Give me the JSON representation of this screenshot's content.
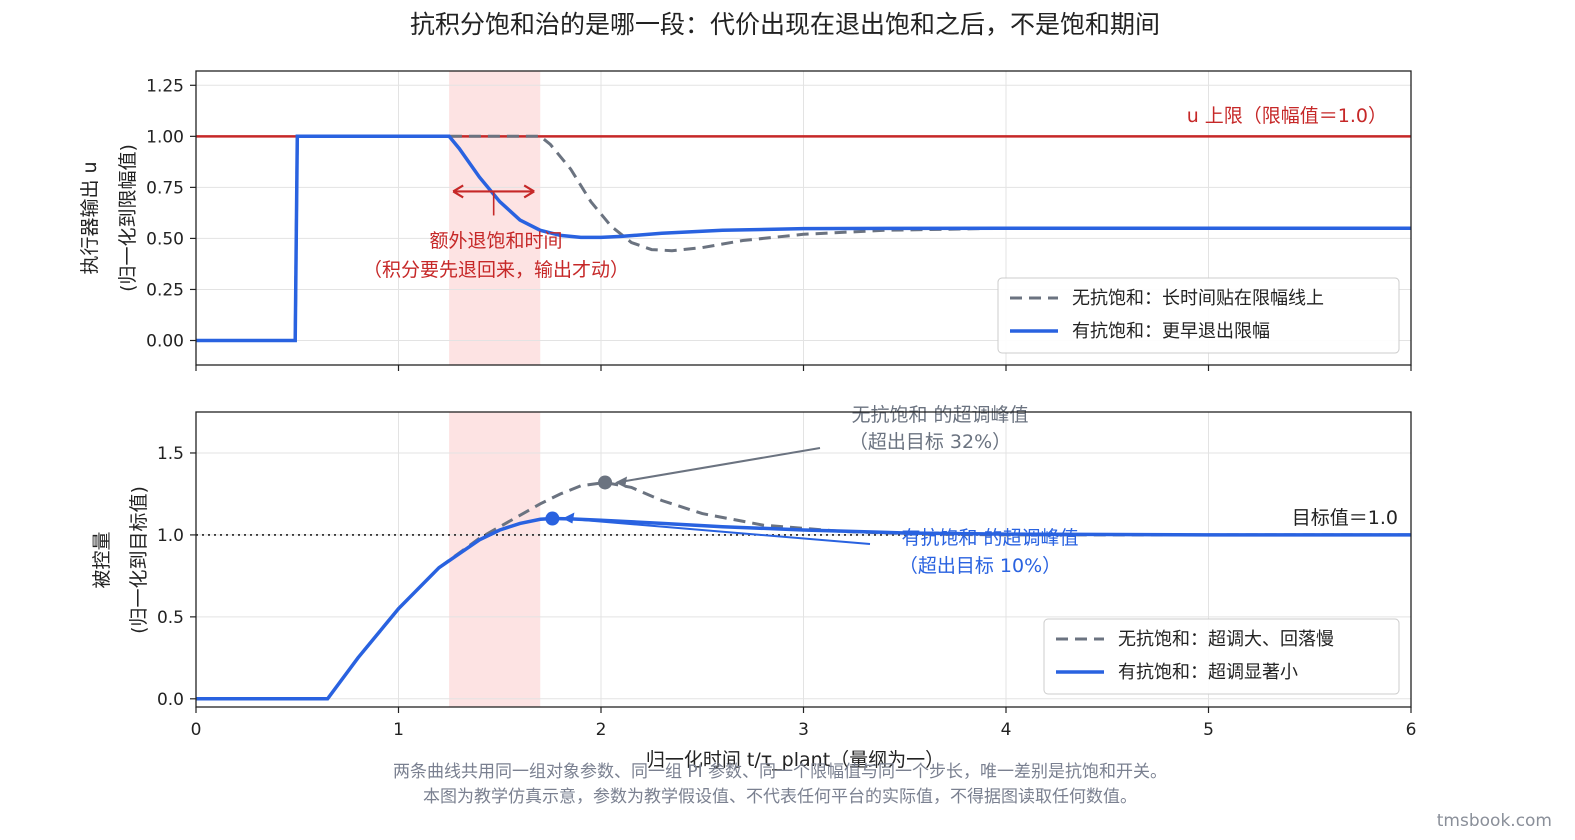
{
  "title": "抗积分饱和治的是哪一段：代价出现在退出饱和之后，不是饱和期间",
  "footnote": {
    "line1": "两条曲线共用同一组对象参数、同一组 PI 参数、同一个限幅值与同一个步长，唯一差别是抗饱和开关。",
    "line2": "本图为教学仿真示意，参数为教学假设值、不代表任何平台的实际值，不得据图读取任何数值。"
  },
  "watermark": "tmsbook.com",
  "colors": {
    "no_aw": "#6b7380",
    "aw": "#2962e0",
    "limit": "#c62828",
    "shade": "#fde3e3",
    "anno_red": "#c62828"
  },
  "chart_data": [
    {
      "type": "line",
      "panel": "top",
      "xlabel": "",
      "ylabel_line1": "执行器输出 u",
      "ylabel_line2": "(归一化到限幅值)",
      "xlim": [
        0,
        6
      ],
      "ylim": [
        -0.12,
        1.32
      ],
      "yticks": [
        0.0,
        0.25,
        0.5,
        0.75,
        1.0,
        1.25
      ],
      "ytick_labels": [
        "0.00",
        "0.25",
        "0.50",
        "0.75",
        "1.00",
        "1.25"
      ],
      "xticks": [
        0,
        1,
        2,
        3,
        4,
        5,
        6
      ],
      "grid": true,
      "shaded_region": [
        1.25,
        1.7
      ],
      "hline": {
        "y": 1.0,
        "label": "u 上限（限幅值＝1.0）"
      },
      "annotation": {
        "line1": "额外退饱和时间",
        "line2": "（积分要先退回来，输出才动）",
        "arrow_x": [
          1.27,
          1.67
        ],
        "arrow_y": 0.73
      },
      "legend_position": "lower right",
      "series": [
        {
          "name": "无抗饱和：长时间贴在限幅线上",
          "style": "dashed",
          "x": [
            0,
            0.49,
            0.5,
            1.0,
            1.7,
            1.75,
            1.85,
            1.95,
            2.05,
            2.15,
            2.25,
            2.35,
            2.5,
            2.7,
            3.0,
            3.4,
            4.0,
            5.0,
            6.0
          ],
          "y": [
            0,
            0,
            1.0,
            1.0,
            1.0,
            0.96,
            0.84,
            0.68,
            0.56,
            0.48,
            0.445,
            0.44,
            0.455,
            0.49,
            0.52,
            0.54,
            0.55,
            0.55,
            0.55
          ]
        },
        {
          "name": "有抗饱和：更早退出限幅",
          "style": "solid",
          "x": [
            0,
            0.49,
            0.5,
            1.0,
            1.25,
            1.3,
            1.4,
            1.5,
            1.6,
            1.7,
            1.8,
            1.9,
            2.0,
            2.1,
            2.3,
            2.6,
            3.0,
            4.0,
            5.0,
            6.0
          ],
          "y": [
            0,
            0,
            1.0,
            1.0,
            1.0,
            0.94,
            0.8,
            0.68,
            0.59,
            0.54,
            0.515,
            0.505,
            0.505,
            0.51,
            0.525,
            0.54,
            0.548,
            0.55,
            0.55,
            0.55
          ]
        }
      ]
    },
    {
      "type": "line",
      "panel": "bottom",
      "xlabel": "归一化时间 t/τ_plant（量纲为一）",
      "ylabel_line1": "被控量",
      "ylabel_line2": "(归一化到目标值)",
      "xlim": [
        0,
        6
      ],
      "ylim": [
        -0.05,
        1.75
      ],
      "yticks": [
        0.0,
        0.5,
        1.0,
        1.5
      ],
      "ytick_labels": [
        "0.0",
        "0.5",
        "1.0",
        "1.5"
      ],
      "xticks": [
        0,
        1,
        2,
        3,
        4,
        5,
        6
      ],
      "xtick_labels": [
        "0",
        "1",
        "2",
        "3",
        "4",
        "5",
        "6"
      ],
      "grid": true,
      "shaded_region": [
        1.25,
        1.7
      ],
      "target_line": {
        "y": 1.0,
        "label": "目标值＝1.0"
      },
      "peaks": [
        {
          "series": "no_aw",
          "x": 2.02,
          "y": 1.32,
          "label_line1": "无抗饱和 的超调峰值",
          "label_line2": "（超出目标 32%）"
        },
        {
          "series": "aw",
          "x": 1.76,
          "y": 1.1,
          "label_line1": "有抗饱和 的超调峰值",
          "label_line2": "（超出目标 10%）"
        }
      ],
      "legend_position": "lower right",
      "series": [
        {
          "name": "无抗饱和：超调大、回落慢",
          "style": "dashed",
          "x": [
            0,
            0.65,
            0.8,
            1.0,
            1.2,
            1.4,
            1.5,
            1.6,
            1.7,
            1.8,
            1.9,
            2.02,
            2.15,
            2.3,
            2.5,
            2.8,
            3.2,
            3.6,
            4.0,
            5.0,
            6.0
          ],
          "y": [
            0,
            0,
            0.25,
            0.55,
            0.8,
            0.98,
            1.05,
            1.12,
            1.19,
            1.25,
            1.3,
            1.32,
            1.29,
            1.21,
            1.13,
            1.06,
            1.02,
            1.005,
            1.0,
            1.0,
            1.0
          ]
        },
        {
          "name": "有抗饱和：超调显著小",
          "style": "solid",
          "x": [
            0,
            0.65,
            0.8,
            1.0,
            1.2,
            1.4,
            1.5,
            1.6,
            1.7,
            1.76,
            1.85,
            2.0,
            2.3,
            2.6,
            3.0,
            3.5,
            4.0,
            5.0,
            6.0
          ],
          "y": [
            0,
            0,
            0.25,
            0.55,
            0.8,
            0.97,
            1.03,
            1.07,
            1.095,
            1.1,
            1.098,
            1.09,
            1.07,
            1.05,
            1.03,
            1.012,
            1.005,
            1.0,
            1.0
          ]
        }
      ]
    }
  ]
}
